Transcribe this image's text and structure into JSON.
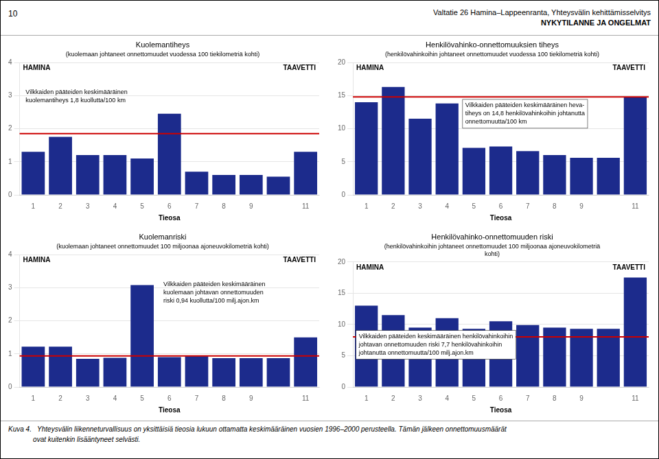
{
  "page_number": "10",
  "title": "Valtatie 26 Hamina–Lappeenranta, Yhteysvälin kehittämisselvitys",
  "subtitle": "NYKYTILANNE JA ONGELMAT",
  "caption": [
    "Kuva 4.   Yhteysvälin liikenneturvallisuus on yksittäisiä tieosia lukuun ottamatta keskimääräinen vuosien 1996–2000 perusteella. Tämän jälkeen onnettomuusmäärät",
    "             ovat kuitenkin lisääntyneet selvästi."
  ],
  "chart_data": [
    {
      "type": "bar",
      "title": "Kuolemantiheys",
      "subtitle": [
        "(kuolemaan johtaneet onnettomuudet vuodessa 100 tiekilometriä kohti)"
      ],
      "categories": [
        "1",
        "2",
        "3",
        "4",
        "5",
        "6",
        "7",
        "8",
        "9",
        null,
        "11"
      ],
      "values": [
        1.3,
        1.75,
        1.2,
        1.2,
        1.1,
        2.45,
        0.7,
        0.6,
        0.6,
        0.55,
        1.3
      ],
      "color": "#1C2B8C",
      "xlabel": "Tieosa",
      "ylim": [
        0,
        4
      ],
      "yticks": [
        0,
        1,
        2,
        3,
        4
      ],
      "grid": true,
      "reference_line": {
        "value": 1.85,
        "color": "#CC0000"
      },
      "annotations": [
        "HAMINA",
        "TAAVETTI",
        "Vilkkaiden pääteiden keskimääräinen\nkuolemantiheys 1,8 kuollutta/100 km"
      ]
    },
    {
      "type": "bar",
      "title": "Henkilövahinko-onnettomuuksien tiheys",
      "subtitle": [
        "(henkilövahinkoihin johtaneet onnettomuudet vuodessa 100 tiekilometriä kohti)"
      ],
      "categories": [
        "1",
        "2",
        "3",
        "4",
        "5",
        "6",
        "7",
        "8",
        "9",
        null,
        "11"
      ],
      "values": [
        14.0,
        16.3,
        11.5,
        13.8,
        7.1,
        7.3,
        6.6,
        6.0,
        5.6,
        5.6,
        14.8
      ],
      "color": "#1C2B8C",
      "xlabel": "Tieosa",
      "ylim": [
        0,
        20
      ],
      "yticks": [
        0,
        5,
        10,
        15,
        20
      ],
      "grid": true,
      "reference_line": {
        "value": 14.8,
        "color": "#CC0000"
      },
      "annotations": [
        "HAMINA",
        "TAAVETTI",
        "Vilkkaiden pääteiden keskimääräinen heva-\ntiheys on 14,8 henkilövahinkoihin johtanutta\nonnettomuutta/100 km"
      ]
    },
    {
      "type": "bar",
      "title": "Kuolemanriski",
      "subtitle": [
        "(kuolemaan johtaneet onnettomuudet 100 miljoonaa ajoneuvokilometriä kohti)"
      ],
      "categories": [
        "1",
        "2",
        "3",
        "4",
        "5",
        "6",
        "7",
        "8",
        "9",
        null,
        "11"
      ],
      "values": [
        1.22,
        1.22,
        0.85,
        0.88,
        3.08,
        0.9,
        0.93,
        0.87,
        0.87,
        0.87,
        1.5
      ],
      "color": "#1C2B8C",
      "xlabel": "Tieosa",
      "ylim": [
        0,
        4
      ],
      "yticks": [
        0,
        1,
        2,
        3,
        4
      ],
      "grid": true,
      "reference_line": {
        "value": 0.94,
        "color": "#CC0000"
      },
      "annotations": [
        "HAMINA",
        "TAAVETTI",
        "Vilkkaiden pääteiden keskimääräinen\nkuolemaan johtavan onnettomuuden\nriski 0,94 kuollutta/100 milj.ajon.km"
      ]
    },
    {
      "type": "bar",
      "title": "Henkilövahinko-onnettomuuden riski",
      "subtitle": [
        "(henkilövahinkoihin johtaneet onnettomuudet 100 miljoonaa ajoneuvokilometriä",
        "kohti)"
      ],
      "categories": [
        "1",
        "2",
        "3",
        "4",
        "5",
        "6",
        "7",
        "8",
        "9",
        null,
        "11"
      ],
      "values": [
        13.0,
        11.5,
        9.5,
        11.0,
        9.3,
        10.5,
        9.9,
        9.5,
        9.3,
        9.3,
        17.5
      ],
      "color": "#1C2B8C",
      "xlabel": "Tieosa",
      "ylim": [
        0,
        20
      ],
      "yticks": [
        0,
        5,
        10,
        15,
        20
      ],
      "grid": true,
      "reference_line": {
        "value": 8.0,
        "color": "#CC0000"
      },
      "annotations": [
        "HAMINA",
        "TAAVETTI",
        "Vilkkaiden pääteiden keskimääräinen henkilövahinkoihin\njohtavan onnettomuuden riski 7,7 henkilövahinkoihin\njohtanutta onnettomuutta/100 milj.ajon.km"
      ]
    }
  ]
}
